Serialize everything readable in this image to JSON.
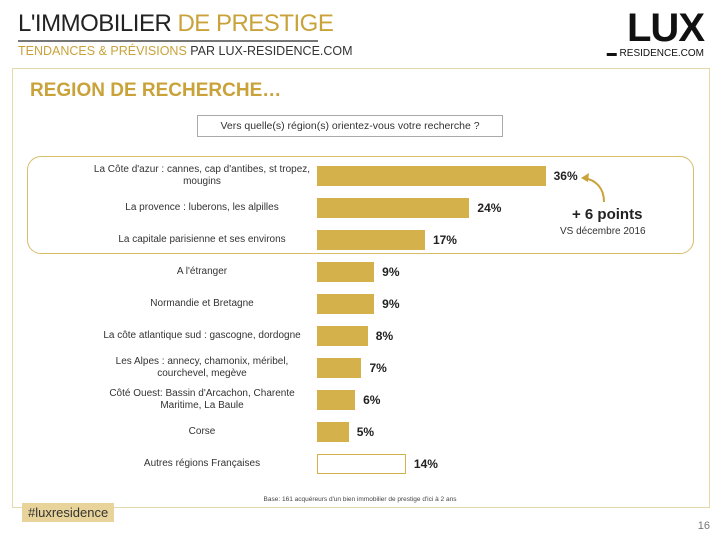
{
  "header": {
    "title_dark": "L'IMMOBILIER ",
    "title_gold": "DE PRESTIGE",
    "subtitle_gold": "TENDANCES & PRÉVISIONS ",
    "subtitle_dark": "PAR LUX-RESIDENCE.COM"
  },
  "logo": {
    "main": "LUX",
    "sub": "RESIDENCE.COM"
  },
  "slide_title": "REGION DE RECHERCHE…",
  "question": "Vers quelle(s) région(s) orientez-vous votre recherche ?",
  "annotation": {
    "points": "+ 6 points",
    "vs": "VS décembre 2016"
  },
  "footer": {
    "base": "Base:  161 acquéreurs d'un bien immobilier de prestige d'ici à 2 ans",
    "hashtag": "#luxresidence",
    "page": "16"
  },
  "colors": {
    "gold": "#d4b14a",
    "title_gold": "#c9a33a"
  },
  "chart_data": {
    "type": "bar",
    "orientation": "horizontal",
    "categories": [
      "La Côte d'azur : cannes, cap d'antibes, st tropez, mougins",
      "La provence : luberons, les alpilles",
      "La capitale parisienne et ses environs",
      "A l'étranger",
      "Normandie et Bretagne",
      "La côte atlantique sud : gascogne, dordogne",
      "Les Alpes : annecy, chamonix, méribel, courchevel, megève",
      "Côté Ouest: Bassin d'Arcachon, Charente Maritime, La Baule",
      "Corse",
      "Autres régions Françaises"
    ],
    "values": [
      36,
      24,
      17,
      9,
      9,
      8,
      7,
      6,
      5,
      14
    ],
    "labels": [
      "36%",
      "24%",
      "17%",
      "9%",
      "9%",
      "8%",
      "7%",
      "6%",
      "5%",
      "14%"
    ],
    "unit": "%"
  }
}
